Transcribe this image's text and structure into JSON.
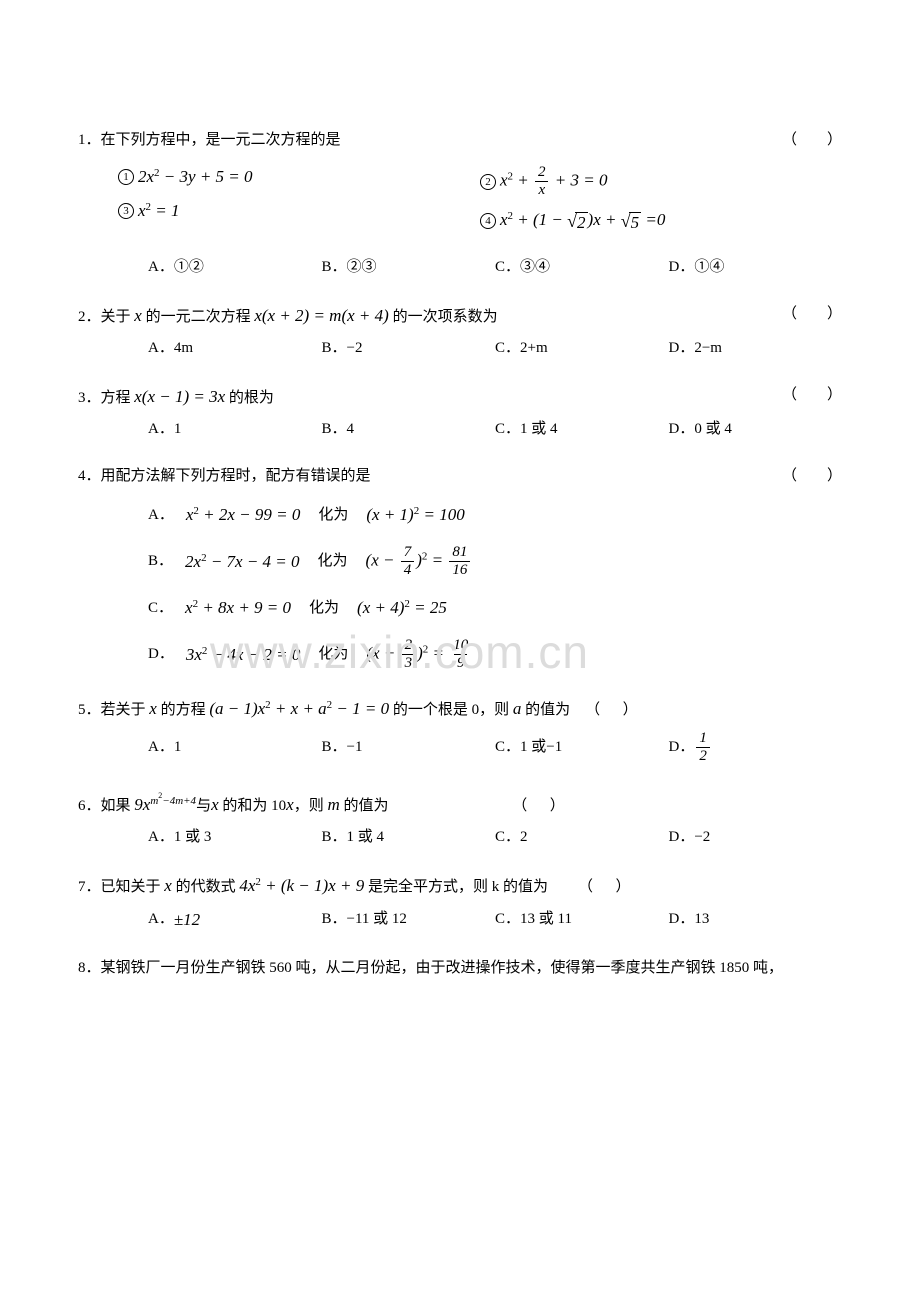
{
  "watermark": "www.zixin.com.cn",
  "q1": {
    "stem_prefix": "1．在下列方程中，是一元二次方程的是",
    "paren": "（        ）",
    "eq1_label": "①",
    "eq1": "2x² − 3y + 5 = 0",
    "eq2_label": "②",
    "eq2_lhs": "x² +",
    "eq2_frac_num": "2",
    "eq2_frac_den": "x",
    "eq2_rhs": "+ 3 = 0",
    "eq3_label": "③",
    "eq3": "x² = 1",
    "eq4_label": "④",
    "eq4_a": "x² + (1 −",
    "eq4_sqrt": "2",
    "eq4_b": ")x +",
    "eq4_sqrt2": "5",
    "eq4_c": "=0",
    "optA": "A．①②",
    "optB": "B．②③",
    "optC": "C．③④",
    "optD": "D．①④"
  },
  "q2": {
    "stem": "2．关于 x 的一元二次方程 x(x + 2) = m(x + 4) 的一次项系数为",
    "paren": "（        ）",
    "optA": "A．4m",
    "optB": "B．−2",
    "optC": "C．2+m",
    "optD": "D．2−m"
  },
  "q3": {
    "stem": "3．方程 x(x − 1) = 3x 的根为",
    "paren": "（        ）",
    "optA": "A．1",
    "optB": "B．4",
    "optC": "C．1 或 4",
    "optD": "D．0 或 4"
  },
  "q4": {
    "stem": "4．用配方法解下列方程时，配方有错误的是",
    "paren": "（        ）",
    "A_lbl": "A．",
    "A_eq1": "x² + 2x − 99 = 0",
    "A_mid": "化为",
    "A_eq2": "(x + 1)² = 100",
    "B_lbl": "B．",
    "B_eq1": "2x² − 7x − 4 = 0",
    "B_mid": "化为",
    "B_eq2_a": "(x −",
    "B_f1_num": "7",
    "B_f1_den": "4",
    "B_eq2_b": ")² =",
    "B_f2_num": "81",
    "B_f2_den": "16",
    "C_lbl": "C．",
    "C_eq1": "x² + 8x + 9 = 0",
    "C_mid": "化为",
    "C_eq2": "(x + 4)² = 25",
    "D_lbl": "D．",
    "D_eq1": "3x² − 4x − 2 = 0",
    "D_mid": "化为",
    "D_eq2_a": "(x −",
    "D_f1_num": "2",
    "D_f1_den": "3",
    "D_eq2_b": ")² =",
    "D_f2_num": "10",
    "D_f2_den": "9"
  },
  "q5": {
    "stem": "5．若关于 x 的方程 (a − 1)x² + x + a² − 1 = 0 的一个根是 0，则 a 的值为    （        ）",
    "optA": "A．1",
    "optB": "B．−1",
    "optC": "C．1 或−1",
    "optD_lbl": "D．",
    "optD_num": "1",
    "optD_den": "2"
  },
  "q6": {
    "stem_a": "6．如果 9x",
    "stem_exp": "m²−4m+4",
    "stem_b": "与x 的和为 10x，则 m 的值为",
    "paren": "（        ）",
    "optA": "A．1 或 3",
    "optB": "B．1 或 4",
    "optC": "C．2",
    "optD": "D．−2"
  },
  "q7": {
    "stem": "7．已知关于 x 的代数式 4x² + (k − 1)x + 9 是完全平方式，则 k 的值为        （        ）",
    "optA": "A．±12",
    "optB": "B．−11 或 12",
    "optC": "C．13 或 11",
    "optD": "D．13"
  },
  "q8": {
    "stem": "8．某钢铁厂一月份生产钢铁 560 吨，从二月份起，由于改进操作技术，使得第一季度共生产钢铁 1850 吨，"
  }
}
